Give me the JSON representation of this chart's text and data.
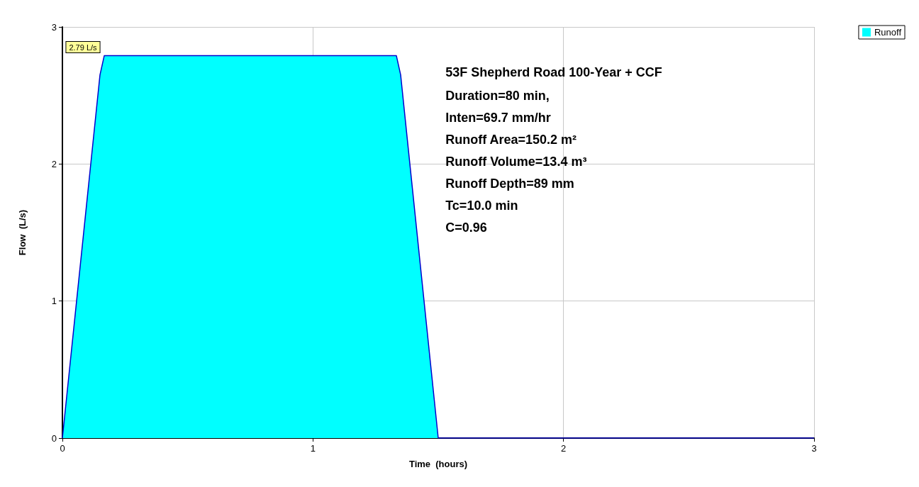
{
  "chart_data": {
    "type": "area",
    "title": "53F Shepherd Road 100-Year + CCF",
    "xlabel": "Time  (hours)",
    "ylabel": "Flow  (L/s)",
    "x": [
      0,
      0.15,
      0.167,
      1.333,
      1.35,
      1.5,
      3
    ],
    "series": [
      {
        "name": "Runoff",
        "color": "#00ffff",
        "values": [
          0,
          2.65,
          2.79,
          2.79,
          2.65,
          0,
          0
        ]
      }
    ],
    "xlim": [
      0,
      3
    ],
    "xticks": [
      0,
      1,
      2,
      3
    ],
    "ylim": [
      0,
      3
    ],
    "yticks": [
      0,
      1,
      2,
      3
    ],
    "grid": true,
    "legend": "top right",
    "annotations": [
      {
        "text": "2.79 L/s",
        "x": 0.167,
        "y": 2.79
      },
      "Duration=80 min,",
      "Inten=69.7 mm/hr",
      "Runoff Area=150.2 m²",
      "Runoff Volume=13.4 m³",
      "Runoff Depth=89 mm",
      "Tc=10.0 min",
      "C=0.96"
    ]
  }
}
